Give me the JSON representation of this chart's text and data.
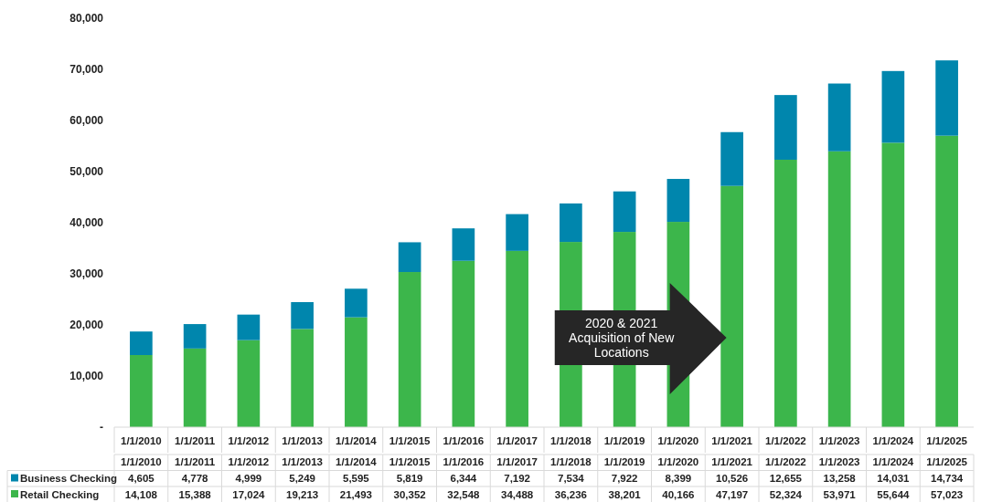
{
  "chart_data": {
    "type": "bar",
    "stacked": true,
    "categories": [
      "1/1/2010",
      "1/1/2011",
      "1/1/2012",
      "1/1/2013",
      "1/1/2014",
      "1/1/2015",
      "1/1/2016",
      "1/1/2017",
      "1/1/2018",
      "1/1/2019",
      "1/1/2020",
      "1/1/2021",
      "1/1/2022",
      "1/1/2023",
      "1/1/2024",
      "1/1/2025"
    ],
    "series": [
      {
        "name": "Retail Checking",
        "color": "#3cb64b",
        "values": [
          14108,
          15388,
          17024,
          19213,
          21493,
          30352,
          32548,
          34488,
          36236,
          38201,
          40166,
          47197,
          52324,
          53971,
          55644,
          57023
        ],
        "value_labels": [
          "14,108",
          "15,388",
          "17,024",
          "19,213",
          "21,493",
          "30,352",
          "32,548",
          "34,488",
          "36,236",
          "38,201",
          "40,166",
          "47,197",
          "52,324",
          "53,971",
          "55,644",
          "57,023"
        ]
      },
      {
        "name": "Business Checking",
        "color": "#0086ad",
        "values": [
          4605,
          4778,
          4999,
          5249,
          5595,
          5819,
          6344,
          7192,
          7534,
          7922,
          8399,
          10526,
          12655,
          13258,
          14031,
          14734
        ],
        "value_labels": [
          "4,605",
          "4,778",
          "4,999",
          "5,249",
          "5,595",
          "5,819",
          "6,344",
          "7,192",
          "7,534",
          "7,922",
          "8,399",
          "10,526",
          "12,655",
          "13,258",
          "14,031",
          "14,734"
        ]
      }
    ],
    "ylim": [
      0,
      80000
    ],
    "yticks": [
      {
        "value": 0,
        "label": "-"
      },
      {
        "value": 10000,
        "label": "10,000"
      },
      {
        "value": 20000,
        "label": "20,000"
      },
      {
        "value": 30000,
        "label": "30,000"
      },
      {
        "value": 40000,
        "label": "40,000"
      },
      {
        "value": 50000,
        "label": "50,000"
      },
      {
        "value": 60000,
        "label": "60,000"
      },
      {
        "value": 70000,
        "label": "70,000"
      },
      {
        "value": 80000,
        "label": "80,000"
      }
    ],
    "legend": "bottom",
    "annotations": [
      "2020 & 2021\nAcquisition of New\nLocations"
    ]
  }
}
